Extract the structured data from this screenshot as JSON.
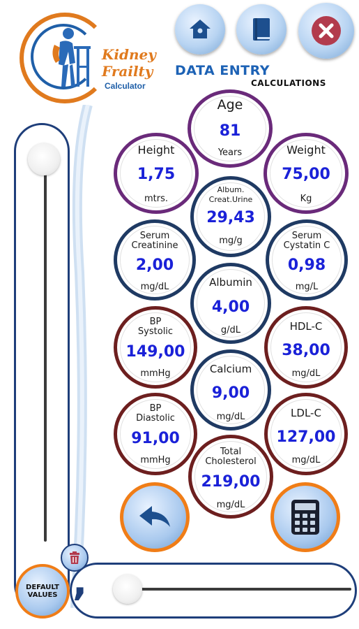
{
  "app": {
    "logo_line1": "Kidney",
    "logo_line2": "Frailty",
    "logo_line3": "Calculator"
  },
  "header": {
    "title": "DATA ENTRY",
    "subtitle": "CALCULATIONS"
  },
  "fields": {
    "age": {
      "label": "Age",
      "value": "81",
      "unit": "Years"
    },
    "height": {
      "label": "Height",
      "value": "1,75",
      "unit": "mtrs."
    },
    "weight": {
      "label": "Weight",
      "value": "75,00",
      "unit": "Kg"
    },
    "album_creat": {
      "label1": "Album.",
      "label2": "Creat.Urine",
      "value": "29,43",
      "unit": "mg/g"
    },
    "serum_creatinine": {
      "label1": "Serum",
      "label2": "Creatinine",
      "value": "2,00",
      "unit": "mg/dL"
    },
    "serum_cystatin": {
      "label1": "Serum",
      "label2": "Cystatin C",
      "value": "0,98",
      "unit": "mg/L"
    },
    "albumin": {
      "label": "Albumin",
      "value": "4,00",
      "unit": "g/dL"
    },
    "bp_systolic": {
      "label1": "BP",
      "label2": "Systolic",
      "value": "149,00",
      "unit": "mmHg"
    },
    "hdl": {
      "label": "HDL-C",
      "value": "38,00",
      "unit": "mg/dL"
    },
    "calcium": {
      "label": "Calcium",
      "value": "9,00",
      "unit": "mg/dL"
    },
    "bp_diastolic": {
      "label1": "BP",
      "label2": "Diastolic",
      "value": "91,00",
      "unit": "mmHg"
    },
    "ldl": {
      "label": "LDL-C",
      "value": "127,00",
      "unit": "mg/dL"
    },
    "total_chol": {
      "label1": "Total",
      "label2": "Cholesterol",
      "value": "219,00",
      "unit": "mg/dL"
    }
  },
  "controls": {
    "default_values_label_1": "DEFAULT",
    "default_values_label_2": "VALUES",
    "decimal_separator": ","
  },
  "colors": {
    "accent_orange": "#f07d17",
    "brand_blue": "#1d62b5",
    "value_blue": "#1a21d8",
    "ring_purple": "#6a2a7a",
    "ring_navy": "#1f3a63",
    "ring_maroon": "#6d1f1f"
  }
}
